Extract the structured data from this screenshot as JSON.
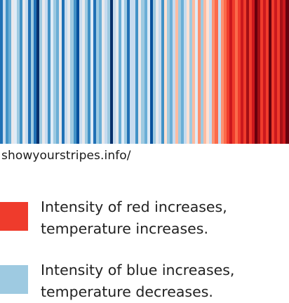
{
  "chart_data": {
    "type": "heatmap",
    "description_free": true,
    "stripe_palette": {
      "-8": "#08306b",
      "-7": "#08519c",
      "-6": "#2171b5",
      "-5": "#4292c6",
      "-4": "#6baed6",
      "-3": "#9ecae1",
      "-2": "#c6dbef",
      "-1": "#deebf7",
      "0": "#e8e8ec",
      "1": "#fee0d2",
      "2": "#fcbba1",
      "3": "#fc9272",
      "4": "#fb6a4a",
      "5": "#ef3b2c",
      "6": "#cb181d",
      "7": "#a50f15",
      "8": "#67000d"
    },
    "values": [
      -6,
      -2,
      -5,
      -4,
      0,
      -1,
      -3,
      -5,
      0,
      -2,
      -6,
      -3,
      -6,
      -8,
      -3,
      0,
      -2,
      -5,
      -1,
      -3,
      -4,
      0,
      -6,
      -2,
      0,
      -3,
      -5,
      -7,
      -2,
      0,
      -3,
      -5,
      -1,
      -6,
      -3,
      -4,
      0,
      -2,
      -3,
      -8,
      -2,
      0,
      -4,
      -1,
      -3,
      -6,
      -2,
      -2,
      -5,
      0,
      -3,
      -4,
      -1,
      -7,
      -3,
      0,
      -2,
      -5,
      1,
      -3,
      -4,
      -2,
      2,
      -3,
      -4,
      -2,
      1,
      -3,
      2,
      -1,
      3,
      -3,
      2,
      1,
      -2,
      3,
      4,
      -2,
      3,
      4,
      5,
      6,
      5,
      4,
      5,
      6,
      5,
      7,
      5,
      6,
      8,
      7,
      5,
      6,
      5,
      8,
      5,
      6,
      5,
      7,
      6,
      8
    ]
  },
  "source_label": "showyourstripes.info/",
  "legend": {
    "warm": {
      "color": "#ef3b2c",
      "line1": "Intensity of red increases,",
      "line2": "temperature increases."
    },
    "cool": {
      "color": "#9ecae1",
      "line1": "Intensity of blue increases,",
      "line2": "temperature decreases."
    }
  }
}
